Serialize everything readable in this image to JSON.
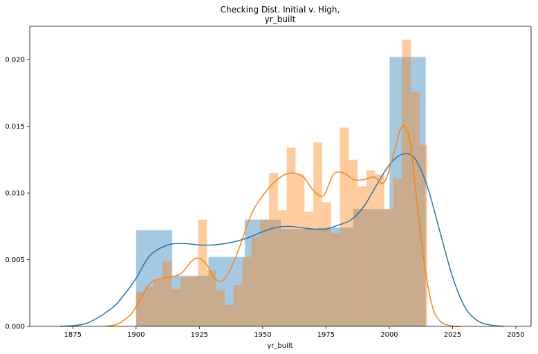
{
  "chart_data": {
    "type": "bar",
    "title_line1": "Checking Dist. Initial v. High,",
    "title_line2": "yr_built",
    "xlabel": "yr_built",
    "ylabel": "",
    "xlim": [
      1858,
      2056
    ],
    "ylim": [
      0,
      0.0225
    ],
    "x_ticks": [
      1875,
      1900,
      1925,
      1950,
      1975,
      2000,
      2025,
      2050
    ],
    "y_ticks": [
      0.0,
      0.005,
      0.01,
      0.015,
      0.02
    ],
    "x_tick_labels": [
      "1875",
      "1900",
      "1925",
      "1950",
      "1975",
      "2000",
      "2025",
      "2050"
    ],
    "y_tick_labels": [
      "0.000",
      "0.005",
      "0.010",
      "0.015",
      "0.020"
    ],
    "grid": false,
    "legend": "none",
    "colors": {
      "blue": "#1f77b4",
      "orange": "#ff7f0e",
      "blue_fill": "#a2c6e0",
      "orange_fill": "#ffc49a",
      "overlap": "#c8ab8e"
    },
    "series": [
      {
        "color": "#1f77b4",
        "hist_bins": [
          [
            1900,
            1914.3,
            0.0072
          ],
          [
            1914.3,
            1928.6,
            0.0038
          ],
          [
            1928.6,
            1942.9,
            0.0052
          ],
          [
            1942.9,
            1957.2,
            0.008
          ],
          [
            1957.2,
            1971.5,
            0.0073
          ],
          [
            1971.5,
            1985.8,
            0.0074
          ],
          [
            1985.8,
            2000.1,
            0.0088
          ],
          [
            2000.1,
            2014.4,
            0.0202
          ]
        ],
        "kde_x": [
          1870,
          1880,
          1890,
          1895,
          1900,
          1905,
          1910,
          1915,
          1920,
          1925,
          1930,
          1935,
          1940,
          1945,
          1950,
          1955,
          1960,
          1965,
          1970,
          1975,
          1980,
          1985,
          1990,
          1995,
          2000,
          2005,
          2010,
          2015,
          2020,
          2025,
          2030,
          2035,
          2040,
          2045
        ],
        "kde_y": [
          0.0,
          0.0002,
          0.0013,
          0.0023,
          0.0036,
          0.0052,
          0.0059,
          0.0062,
          0.0062,
          0.0061,
          0.0061,
          0.0062,
          0.0064,
          0.0067,
          0.0071,
          0.0074,
          0.0075,
          0.0074,
          0.0073,
          0.0073,
          0.0076,
          0.008,
          0.009,
          0.0106,
          0.0121,
          0.0129,
          0.0126,
          0.0105,
          0.0071,
          0.0037,
          0.0014,
          0.0004,
          0.0001,
          0.0
        ]
      },
      {
        "color": "#ff7f0e",
        "hist_bins": [
          [
            1900,
            1903.5,
            0.0026
          ],
          [
            1903.5,
            1907,
            0.003
          ],
          [
            1907,
            1910.5,
            0.0035
          ],
          [
            1910.5,
            1914,
            0.0049
          ],
          [
            1914,
            1917.5,
            0.0028
          ],
          [
            1917.5,
            1921,
            0.0037
          ],
          [
            1921,
            1924.5,
            0.0037
          ],
          [
            1924.5,
            1928,
            0.008
          ],
          [
            1928,
            1931.5,
            0.0042
          ],
          [
            1931.5,
            1935,
            0.0027
          ],
          [
            1935,
            1938.5,
            0.0016
          ],
          [
            1938.5,
            1942,
            0.0031
          ],
          [
            1942,
            1945.5,
            0.0052
          ],
          [
            1945.5,
            1949,
            0.0067
          ],
          [
            1949,
            1952.5,
            0.008
          ],
          [
            1952.5,
            1956,
            0.0115
          ],
          [
            1956,
            1959.5,
            0.0087
          ],
          [
            1959.5,
            1963,
            0.0134
          ],
          [
            1963,
            1966.5,
            0.0114
          ],
          [
            1966.5,
            1970,
            0.0086
          ],
          [
            1970,
            1973.5,
            0.0138
          ],
          [
            1973.5,
            1977,
            0.0093
          ],
          [
            1977,
            1980.5,
            0.007
          ],
          [
            1980.5,
            1984,
            0.0149
          ],
          [
            1984,
            1987.5,
            0.0125
          ],
          [
            1987.5,
            1991,
            0.0105
          ],
          [
            1991,
            1994.5,
            0.0117
          ],
          [
            1994.5,
            1998,
            0.0114
          ],
          [
            1998,
            2001.5,
            0.0088
          ],
          [
            2001.5,
            2005,
            0.0111
          ],
          [
            2005,
            2008.5,
            0.0215
          ],
          [
            2008.5,
            2012,
            0.0176
          ],
          [
            2012,
            2015,
            0.0136
          ]
        ],
        "kde_x": [
          1888,
          1893,
          1898,
          1900,
          1903,
          1906,
          1910,
          1914,
          1918,
          1922,
          1925,
          1928,
          1931,
          1934,
          1937,
          1940,
          1943,
          1946,
          1950,
          1954,
          1958,
          1962,
          1966,
          1970,
          1974,
          1978,
          1982,
          1986,
          1990,
          1994,
          1998,
          2002,
          2005,
          2008,
          2011,
          2014,
          2017,
          2020,
          2023,
          2026,
          2028
        ],
        "kde_y": [
          0.0,
          0.0002,
          0.0009,
          0.0015,
          0.0025,
          0.0033,
          0.0036,
          0.0037,
          0.004,
          0.0049,
          0.0051,
          0.0046,
          0.0036,
          0.0034,
          0.0042,
          0.0055,
          0.0071,
          0.0086,
          0.0098,
          0.0107,
          0.0113,
          0.0115,
          0.0112,
          0.0102,
          0.0098,
          0.0114,
          0.0115,
          0.011,
          0.011,
          0.0112,
          0.0108,
          0.0131,
          0.015,
          0.014,
          0.0092,
          0.0045,
          0.0015,
          0.0004,
          0.0001,
          0.0,
          0.0
        ]
      }
    ]
  }
}
